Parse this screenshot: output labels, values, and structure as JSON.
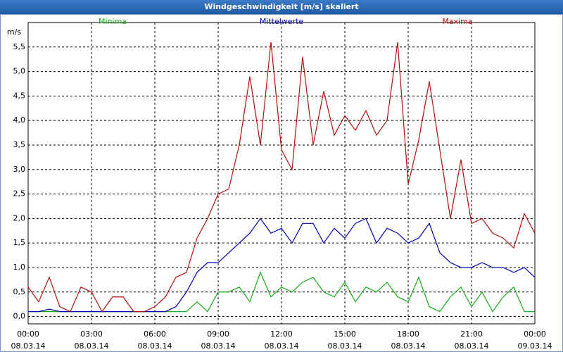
{
  "chart_data": {
    "type": "line",
    "title": "Windgeschwindigkeit [m/s] skaliert",
    "y_label": "m/s",
    "x": [
      0,
      0.5,
      1,
      1.5,
      2,
      2.5,
      3,
      3.5,
      4,
      4.5,
      5,
      5.5,
      6,
      6.5,
      7,
      7.5,
      8,
      8.5,
      9,
      9.5,
      10,
      10.5,
      11,
      11.5,
      12,
      12.5,
      13,
      13.5,
      14,
      14.5,
      15,
      15.5,
      16,
      16.5,
      17,
      17.5,
      18,
      18.5,
      19,
      19.5,
      20,
      20.5,
      21,
      21.5,
      22,
      22.5,
      23,
      23.5,
      24
    ],
    "series": [
      {
        "name": "Minima",
        "color": "#1aab1a",
        "values": [
          0.1,
          0.1,
          0.1,
          0.1,
          0.1,
          0.1,
          0.1,
          0.1,
          0.1,
          0.1,
          0.1,
          0.1,
          0.1,
          0.1,
          0.1,
          0.1,
          0.3,
          0.1,
          0.5,
          0.5,
          0.6,
          0.3,
          0.9,
          0.4,
          0.6,
          0.5,
          0.7,
          0.8,
          0.5,
          0.4,
          0.7,
          0.3,
          0.6,
          0.5,
          0.7,
          0.4,
          0.3,
          0.8,
          0.2,
          0.1,
          0.4,
          0.6,
          0.2,
          0.5,
          0.1,
          0.4,
          0.6,
          0.1,
          0.1
        ]
      },
      {
        "name": "Mittelwerte",
        "color": "#0000b0",
        "values": [
          0.1,
          0.1,
          0.15,
          0.1,
          0.1,
          0.1,
          0.1,
          0.1,
          0.1,
          0.1,
          0.1,
          0.1,
          0.1,
          0.1,
          0.2,
          0.5,
          0.9,
          1.1,
          1.1,
          1.3,
          1.5,
          1.7,
          2.0,
          1.7,
          1.8,
          1.5,
          1.9,
          1.9,
          1.5,
          1.8,
          1.6,
          1.9,
          2.0,
          1.5,
          1.8,
          1.7,
          1.5,
          1.6,
          1.9,
          1.3,
          1.1,
          1.0,
          1.0,
          1.1,
          1.0,
          1.0,
          0.9,
          1.0,
          0.8
        ]
      },
      {
        "name": "Maxima",
        "color": "#b01010",
        "values": [
          0.6,
          0.3,
          0.8,
          0.2,
          0.1,
          0.6,
          0.5,
          0.1,
          0.4,
          0.4,
          0.1,
          0.1,
          0.2,
          0.4,
          0.8,
          0.9,
          1.6,
          2.0,
          2.5,
          2.6,
          3.5,
          4.9,
          3.5,
          5.6,
          3.4,
          3.0,
          5.3,
          3.5,
          4.6,
          3.7,
          4.1,
          3.8,
          4.2,
          3.7,
          4.0,
          5.6,
          2.7,
          3.6,
          4.8,
          3.4,
          2.0,
          3.2,
          1.9,
          2.0,
          1.7,
          1.6,
          1.4,
          2.1,
          1.7
        ]
      }
    ],
    "xlim": [
      0,
      24
    ],
    "xticks": [
      {
        "value": 0,
        "label": "00:00\n08.03.14"
      },
      {
        "value": 3,
        "label": "03:00\n08.03.14"
      },
      {
        "value": 6,
        "label": "06:00\n08.03.14"
      },
      {
        "value": 9,
        "label": "09:00\n08.03.14"
      },
      {
        "value": 12,
        "label": "12:00\n08.03.14"
      },
      {
        "value": 15,
        "label": "15:00\n08.03.14"
      },
      {
        "value": 18,
        "label": "18:00\n08.03.14"
      },
      {
        "value": 21,
        "label": "21:00\n08.03.14"
      },
      {
        "value": 24,
        "label": "00:00\n09.03.14"
      }
    ],
    "ylim": [
      -0.15,
      6.0
    ],
    "yticks": [
      {
        "value": 0,
        "label": "0,0"
      },
      {
        "value": 0.5,
        "label": "0,5"
      },
      {
        "value": 1,
        "label": "1,0"
      },
      {
        "value": 1.5,
        "label": "1,5"
      },
      {
        "value": 2,
        "label": "2,0"
      },
      {
        "value": 2.5,
        "label": "2,5"
      },
      {
        "value": 3,
        "label": "3,0"
      },
      {
        "value": 3.5,
        "label": "3,5"
      },
      {
        "value": 4,
        "label": "4,0"
      },
      {
        "value": 4.5,
        "label": "4,5"
      },
      {
        "value": 5,
        "label": "5,0"
      },
      {
        "value": 5.5,
        "label": "5,5"
      }
    ],
    "grid": true
  }
}
